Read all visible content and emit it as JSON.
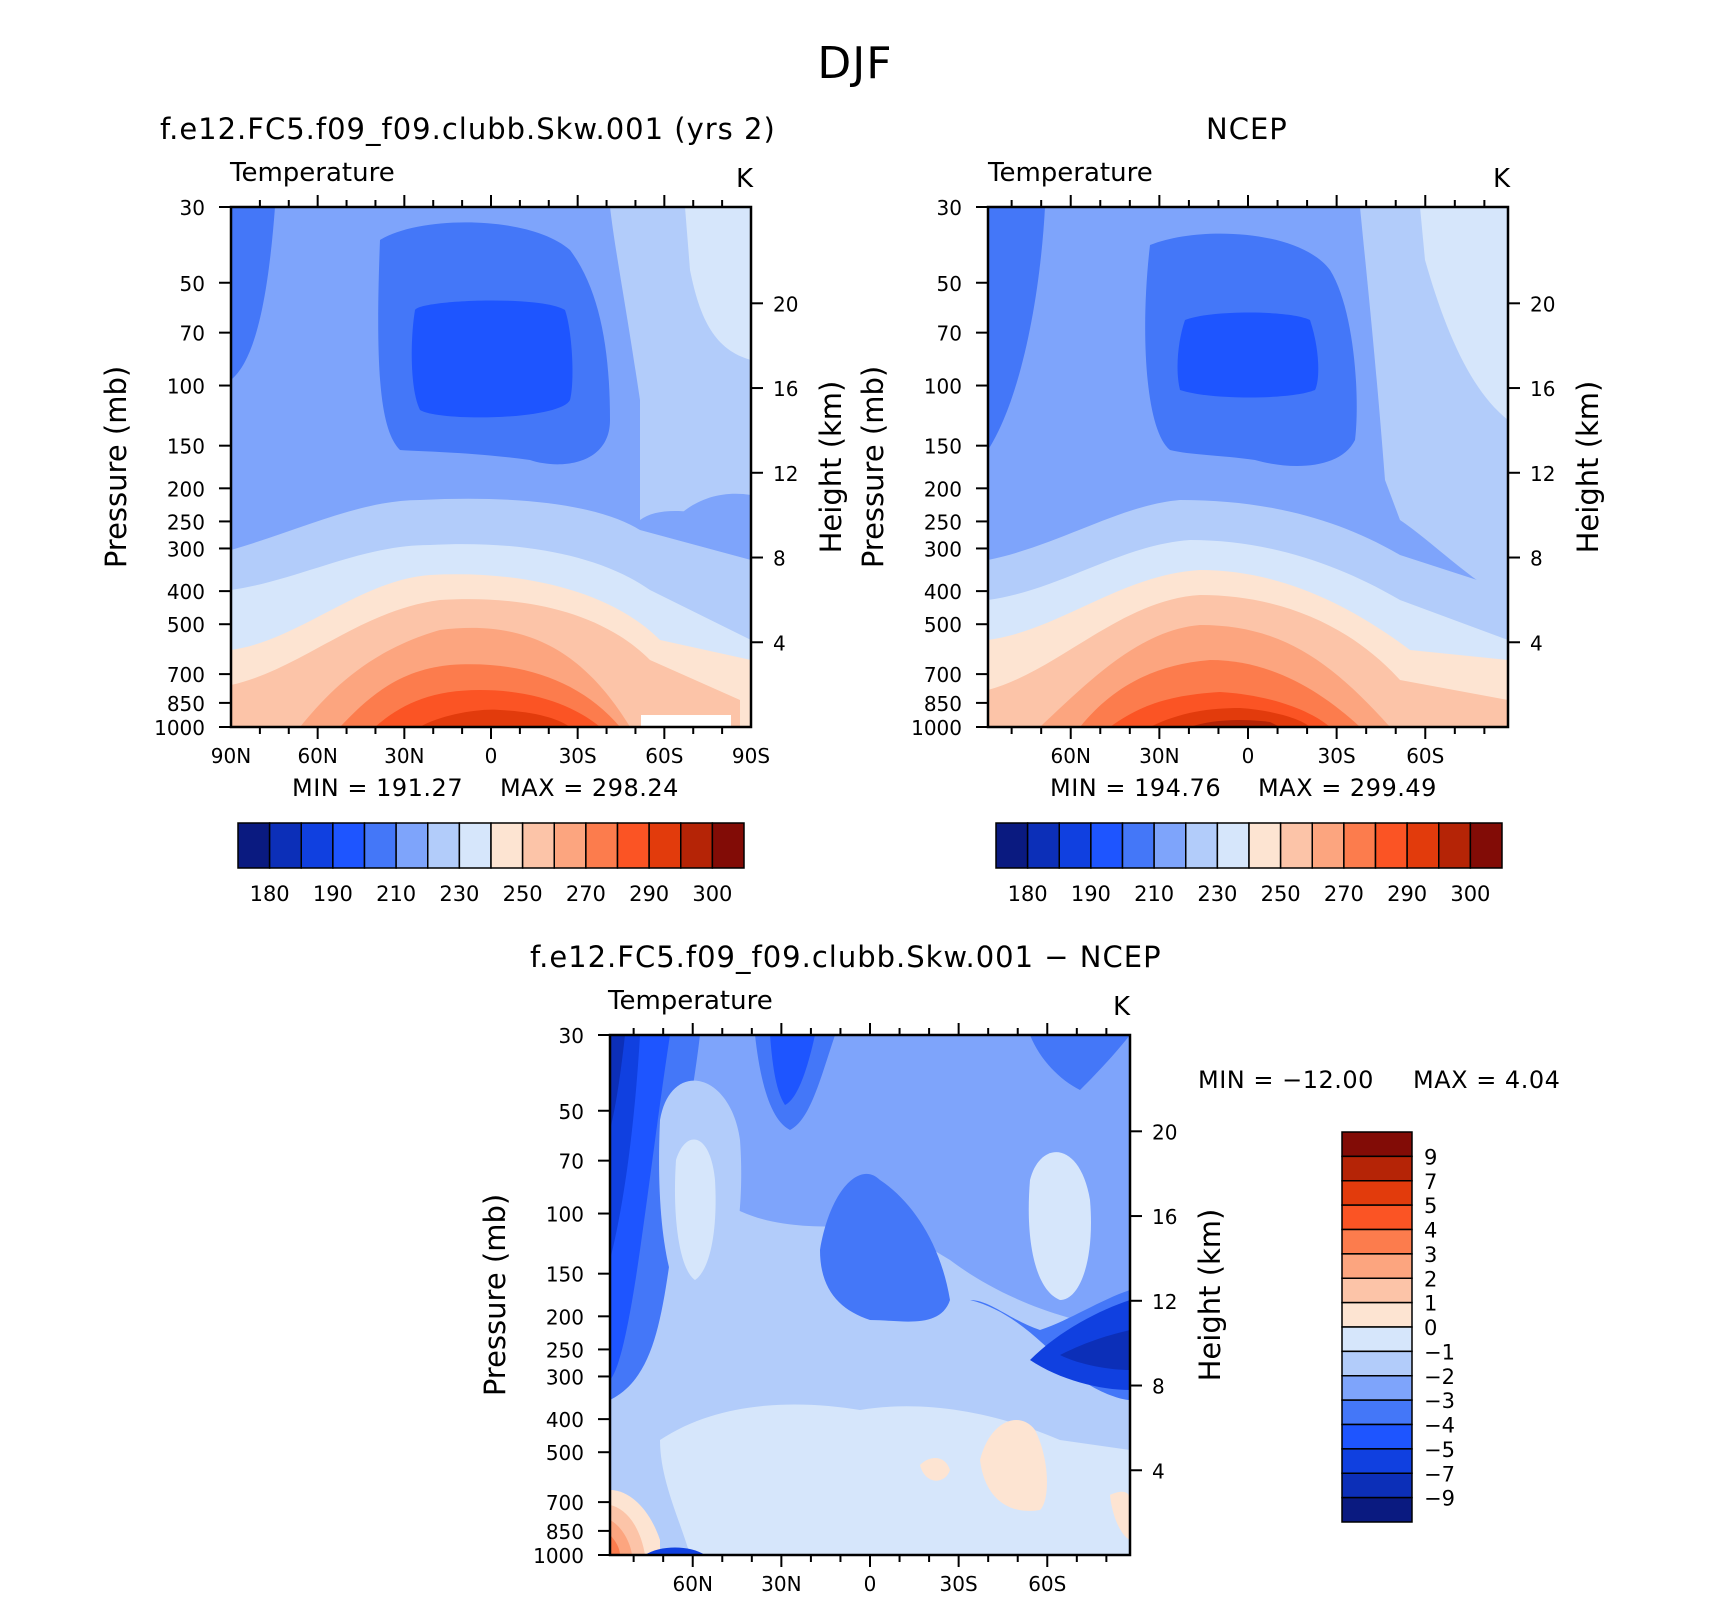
{
  "page_title": "DJF",
  "chart_data": [
    {
      "type": "heatmap",
      "title": "f.e12.FC5.f09_f09.clubb.Skw.001 (yrs 2)",
      "variable": "Temperature",
      "units": "K",
      "ylabel": "Pressure (mb)",
      "ylabel_right": "Height (km)",
      "x_ticks": [
        "90N",
        "60N",
        "30N",
        "0",
        "30S",
        "60S",
        "90S"
      ],
      "x_values": [
        90,
        60,
        30,
        0,
        -30,
        -60,
        -90
      ],
      "y_ticks": [
        30,
        50,
        70,
        100,
        150,
        200,
        250,
        300,
        400,
        500,
        700,
        850,
        1000
      ],
      "y_right_ticks": [
        20,
        16,
        12,
        8,
        4
      ],
      "ylim": [
        1000,
        30
      ],
      "y_scale": "log",
      "min_label": "MIN = 191.27",
      "max_label": "MAX = 298.24",
      "min": 191.27,
      "max": 298.24,
      "colorbar_labels": [
        "180",
        "190",
        "210",
        "230",
        "250",
        "270",
        "290",
        "300"
      ]
    },
    {
      "type": "heatmap",
      "title": "NCEP",
      "variable": "Temperature",
      "units": "K",
      "ylabel": "Pressure (mb)",
      "ylabel_right": "Height (km)",
      "x_ticks": [
        "60N",
        "30N",
        "0",
        "30S",
        "60S"
      ],
      "x_values": [
        60,
        30,
        0,
        -30,
        -60
      ],
      "y_ticks": [
        30,
        50,
        70,
        100,
        150,
        200,
        250,
        300,
        400,
        500,
        700,
        850,
        1000
      ],
      "y_right_ticks": [
        20,
        16,
        12,
        8,
        4
      ],
      "ylim": [
        1000,
        30
      ],
      "y_scale": "log",
      "min_label": "MIN = 194.76",
      "max_label": "MAX = 299.49",
      "min": 194.76,
      "max": 299.49,
      "colorbar_labels": [
        "180",
        "190",
        "210",
        "230",
        "250",
        "270",
        "290",
        "300"
      ]
    },
    {
      "type": "heatmap",
      "title": "f.e12.FC5.f09_f09.clubb.Skw.001 − NCEP",
      "variable": "Temperature",
      "units": "K",
      "ylabel": "Pressure (mb)",
      "ylabel_right": "Height (km)",
      "x_ticks": [
        "60N",
        "30N",
        "0",
        "30S",
        "60S"
      ],
      "x_values": [
        60,
        30,
        0,
        -30,
        -60
      ],
      "y_ticks": [
        30,
        50,
        70,
        100,
        150,
        200,
        250,
        300,
        400,
        500,
        700,
        850,
        1000
      ],
      "y_right_ticks": [
        20,
        16,
        12,
        8,
        4
      ],
      "ylim": [
        1000,
        30
      ],
      "y_scale": "log",
      "min_label": "MIN = −12.00",
      "max_label": "MAX = 4.04",
      "min": -12.0,
      "max": 4.04,
      "colorbar_labels": [
        "9",
        "7",
        "5",
        "4",
        "3",
        "2",
        "1",
        "0",
        "−1",
        "−2",
        "−3",
        "−4",
        "−5",
        "−7",
        "−9"
      ]
    }
  ],
  "colors": {
    "abs_colormap": [
      "#0a1a80",
      "#0c2fb8",
      "#1040e0",
      "#1e55ff",
      "#4477f8",
      "#7ea4fb",
      "#b2ccfa",
      "#d6e6fb",
      "#fde4d2",
      "#fcc4a8",
      "#fca57f",
      "#fc7c4d",
      "#fb5424",
      "#e23b0c",
      "#b52406",
      "#820c06"
    ],
    "diff_colormap": [
      "#820c06",
      "#b52406",
      "#e23b0c",
      "#fb5424",
      "#fc7c4d",
      "#fca57f",
      "#fcc4a8",
      "#fde4d2",
      "#d6e6fb",
      "#b2ccfa",
      "#7ea4fb",
      "#4477f8",
      "#1e55ff",
      "#1040e0",
      "#0c2fb8",
      "#0a1a80"
    ]
  }
}
